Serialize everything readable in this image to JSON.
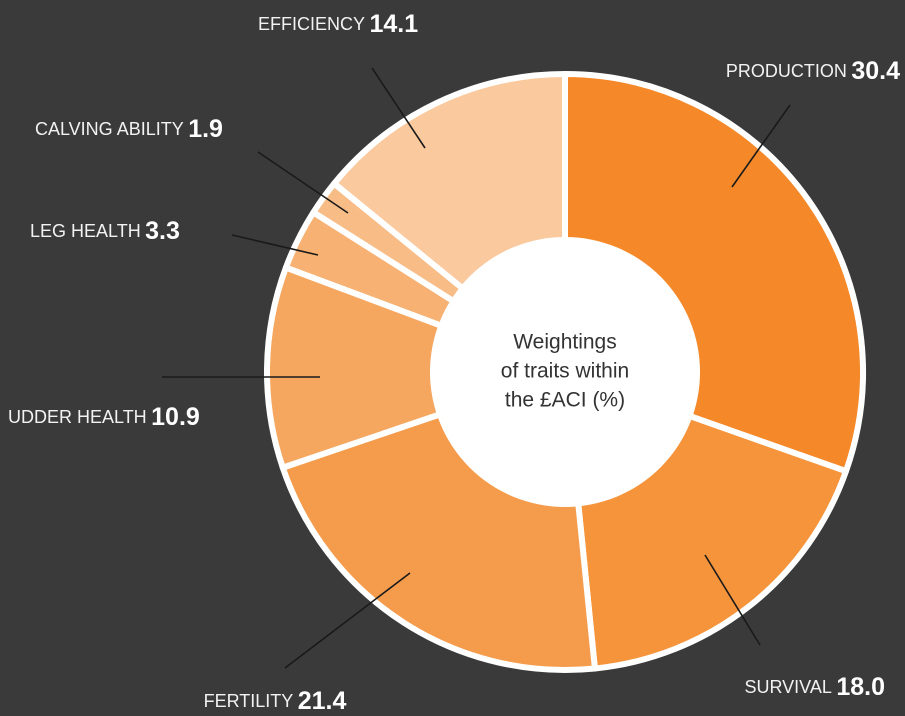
{
  "chart_data": {
    "type": "donut",
    "center_text": [
      "Weightings",
      "of traits within",
      "the £ACI (%)"
    ],
    "categories": [
      "PRODUCTION",
      "SURVIVAL",
      "FERTILITY",
      "UDDER HEALTH",
      "LEG HEALTH",
      "CALVING ABILITY",
      "EFFICIENCY"
    ],
    "values": [
      30.4,
      18.0,
      21.4,
      10.9,
      3.3,
      1.9,
      14.1
    ],
    "value_labels": [
      "30.4",
      "18.0",
      "21.4",
      "10.9",
      "3.3",
      "1.9",
      "14.1"
    ],
    "colors": [
      "#f5892a",
      "#f5943b",
      "#f59c4c",
      "#f6a75f",
      "#f7b273",
      "#f8bd87",
      "#fac99e"
    ]
  }
}
